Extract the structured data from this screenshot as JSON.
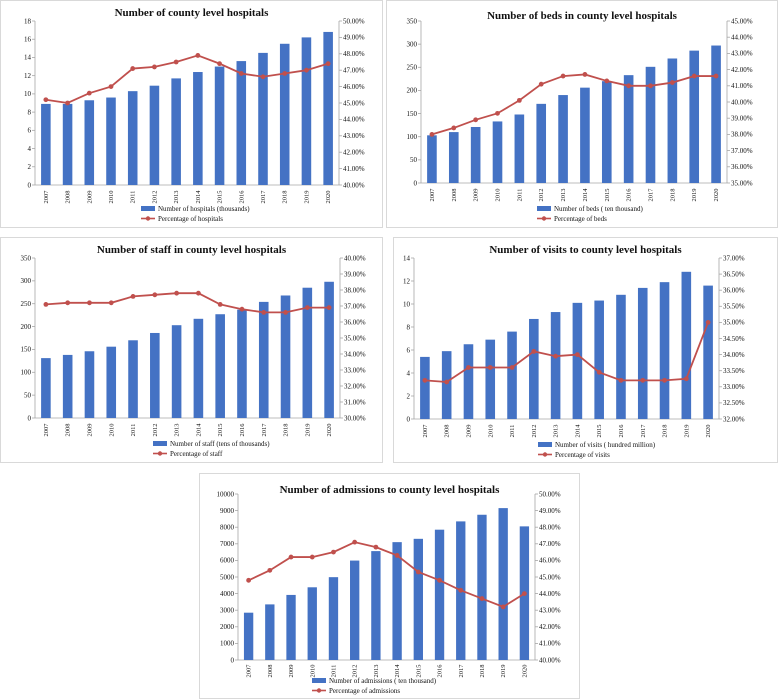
{
  "colors": {
    "bar": "#4472c4",
    "line": "#c0504d",
    "axis": "#a6a6a6"
  },
  "chart_data": [
    {
      "type": "bar+line",
      "title": "Number of county level hospitals",
      "categories": [
        "2007",
        "2008",
        "2009",
        "2010",
        "2011",
        "2012",
        "2013",
        "2014",
        "2015",
        "2016",
        "2017",
        "2018",
        "2019",
        "2020"
      ],
      "series": [
        {
          "name": "Number of hospitals (thousands)",
          "type": "bar",
          "axis": "left",
          "values": [
            8.9,
            8.9,
            9.3,
            9.6,
            10.3,
            10.9,
            11.7,
            12.4,
            13.0,
            13.6,
            14.5,
            15.5,
            16.2,
            16.8
          ]
        },
        {
          "name": "Percentage of hospitals",
          "type": "line",
          "axis": "right",
          "values": [
            45.2,
            45.0,
            45.6,
            46.0,
            47.1,
            47.2,
            47.5,
            47.9,
            47.4,
            46.8,
            46.6,
            46.8,
            47.0,
            47.4
          ]
        }
      ],
      "y_left": {
        "min": 0,
        "max": 18,
        "step": 2,
        "ticks": [
          "0",
          "2",
          "4",
          "6",
          "8",
          "10",
          "12",
          "14",
          "16",
          "18"
        ]
      },
      "y_right": {
        "min": 40,
        "max": 50,
        "step": 1,
        "ticks": [
          "40.00%",
          "41.00%",
          "42.00%",
          "43.00%",
          "44.00%",
          "45.00%",
          "46.00%",
          "47.00%",
          "48.00%",
          "49.00%",
          "50.00%"
        ]
      }
    },
    {
      "type": "bar+line",
      "title": "Number of beds in county level hospitals",
      "categories": [
        "2007",
        "2008",
        "2009",
        "2010",
        "2011",
        "2012",
        "2013",
        "2014",
        "2015",
        "2016",
        "2017",
        "2018",
        "2019",
        "2020"
      ],
      "series": [
        {
          "name": "Number of beds ( ten thousand)",
          "type": "bar",
          "axis": "left",
          "values": [
            103,
            110,
            121,
            133,
            148,
            171,
            190,
            206,
            220,
            233,
            251,
            269,
            286,
            297
          ]
        },
        {
          "name": "Percentage of beds",
          "type": "line",
          "axis": "right",
          "values": [
            38.0,
            38.4,
            38.9,
            39.3,
            40.1,
            41.1,
            41.6,
            41.7,
            41.3,
            41.0,
            41.0,
            41.2,
            41.6,
            41.6
          ]
        }
      ],
      "y_left": {
        "min": 0,
        "max": 350,
        "step": 50,
        "ticks": [
          "0",
          "50",
          "100",
          "150",
          "200",
          "250",
          "300",
          "350"
        ]
      },
      "y_right": {
        "min": 35,
        "max": 45,
        "step": 1,
        "ticks": [
          "35.00%",
          "36.00%",
          "37.00%",
          "38.00%",
          "39.00%",
          "40.00%",
          "41.00%",
          "42.00%",
          "43.00%",
          "44.00%",
          "45.00%"
        ]
      }
    },
    {
      "type": "bar+line",
      "title": "Number of staff in county level hospitals",
      "categories": [
        "2007",
        "2008",
        "2009",
        "2010",
        "2011",
        "2012",
        "2013",
        "2014",
        "2015",
        "2016",
        "2017",
        "2018",
        "2019",
        "2020"
      ],
      "series": [
        {
          "name": "Number of staff (tens of thousands)",
          "type": "bar",
          "axis": "left",
          "values": [
            131,
            138,
            146,
            156,
            170,
            186,
            203,
            217,
            227,
            237,
            254,
            268,
            285,
            298
          ]
        },
        {
          "name": "Percentage of staff",
          "type": "line",
          "axis": "right",
          "values": [
            37.1,
            37.2,
            37.2,
            37.2,
            37.6,
            37.7,
            37.8,
            37.8,
            37.1,
            36.8,
            36.6,
            36.6,
            36.9,
            36.9
          ]
        }
      ],
      "y_left": {
        "min": 0,
        "max": 350,
        "step": 50,
        "ticks": [
          "0",
          "50",
          "100",
          "150",
          "200",
          "250",
          "300",
          "350"
        ]
      },
      "y_right": {
        "min": 30,
        "max": 40,
        "step": 1,
        "ticks": [
          "30.00%",
          "31.00%",
          "32.00%",
          "33.00%",
          "34.00%",
          "35.00%",
          "36.00%",
          "37.00%",
          "38.00%",
          "39.00%",
          "40.00%"
        ]
      }
    },
    {
      "type": "bar+line",
      "title": "Number of visits to county level hospitals",
      "categories": [
        "2007",
        "2008",
        "2009",
        "2010",
        "2011",
        "2012",
        "2013",
        "2014",
        "2015",
        "2016",
        "2017",
        "2018",
        "2019",
        "2020"
      ],
      "series": [
        {
          "name": "Number of visits ( hundred million)",
          "type": "bar",
          "axis": "left",
          "values": [
            5.4,
            5.9,
            6.5,
            6.9,
            7.6,
            8.7,
            9.3,
            10.1,
            10.3,
            10.8,
            11.4,
            11.9,
            12.8,
            11.6
          ]
        },
        {
          "name": "Percentage of visits",
          "type": "line",
          "axis": "right",
          "values": [
            33.2,
            33.15,
            33.6,
            33.6,
            33.6,
            34.1,
            33.95,
            34.0,
            33.45,
            33.2,
            33.2,
            33.2,
            33.25,
            35.0
          ]
        }
      ],
      "y_left": {
        "min": 0,
        "max": 14,
        "step": 2,
        "ticks": [
          "0",
          "2",
          "4",
          "6",
          "8",
          "10",
          "12",
          "14"
        ]
      },
      "y_right": {
        "min": 32,
        "max": 37,
        "step": 0.5,
        "ticks": [
          "32.00%",
          "32.50%",
          "33.00%",
          "33.50%",
          "34.00%",
          "34.50%",
          "35.00%",
          "35.50%",
          "36.00%",
          "36.50%",
          "37.00%"
        ]
      }
    },
    {
      "type": "bar+line",
      "title": "Number of admissions to county level hospitals",
      "categories": [
        "2007",
        "2008",
        "2009",
        "2010",
        "2011",
        "2012",
        "2013",
        "2014",
        "2015",
        "2016",
        "2017",
        "2018",
        "2019",
        "2020"
      ],
      "series": [
        {
          "name": "Number of admissions ( ten thousand)",
          "type": "bar",
          "axis": "left",
          "values": [
            2850,
            3350,
            3920,
            4380,
            4990,
            5990,
            6560,
            7100,
            7300,
            7850,
            8350,
            8750,
            9150,
            8050
          ]
        },
        {
          "name": "Percentage of admissions",
          "type": "line",
          "axis": "right",
          "values": [
            44.8,
            45.4,
            46.2,
            46.2,
            46.5,
            47.1,
            46.8,
            46.3,
            45.3,
            44.8,
            44.2,
            43.7,
            43.2,
            44.0
          ]
        }
      ],
      "y_left": {
        "min": 0,
        "max": 10000,
        "step": 1000,
        "ticks": [
          "0",
          "1000",
          "2000",
          "3000",
          "4000",
          "5000",
          "6000",
          "7000",
          "8000",
          "9000",
          "10000"
        ]
      },
      "y_right": {
        "min": 40,
        "max": 50,
        "step": 1,
        "ticks": [
          "40.00%",
          "41.00%",
          "42.00%",
          "43.00%",
          "44.00%",
          "45.00%",
          "46.00%",
          "47.00%",
          "48.00%",
          "49.00%",
          "50.00%"
        ]
      }
    }
  ]
}
